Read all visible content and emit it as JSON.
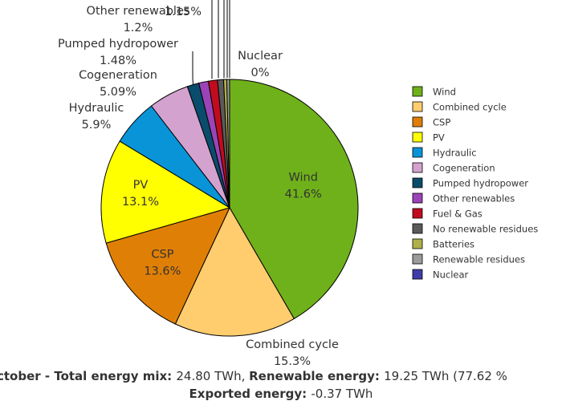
{
  "chart_data": {
    "type": "pie",
    "slices": [
      {
        "label": "Wind",
        "value": 41.6,
        "display": "41.6%",
        "color": "#6fb11a"
      },
      {
        "label": "Combined cycle",
        "value": 15.3,
        "display": "15.3%",
        "color": "#ffcc6e"
      },
      {
        "label": "CSP",
        "value": 13.6,
        "display": "13.6%",
        "color": "#e07f06"
      },
      {
        "label": "PV",
        "value": 13.1,
        "display": "13.1%",
        "color": "#ffff00"
      },
      {
        "label": "Hydraulic",
        "value": 5.9,
        "display": "5.9%",
        "color": "#0994d8"
      },
      {
        "label": "Cogeneration",
        "value": 5.09,
        "display": "5.09%",
        "color": "#d4a2cf"
      },
      {
        "label": "Pumped hydropower",
        "value": 1.48,
        "display": "1.48%",
        "color": "#0a4c6b"
      },
      {
        "label": "Other renewables",
        "value": 1.2,
        "display": "1.2%",
        "color": "#9a44b7"
      },
      {
        "label": "Fuel & Gas",
        "value": 1.15,
        "display": "1.15%",
        "color": "#c00c1e"
      },
      {
        "label": "No renewable residues",
        "value": 0.75,
        "display": "0.75%",
        "color": "#5a5a5a"
      },
      {
        "label": "Batteries",
        "value": 0.4,
        "display": "0.4%",
        "color": "#b0b04a"
      },
      {
        "label": "Renewable residues",
        "value": 0.35,
        "display": "0.35%",
        "color": "#9b9b9b"
      },
      {
        "label": "Nuclear",
        "value": 0.0,
        "display": "0%",
        "color": "#3e3ea8"
      }
    ],
    "legend_position": "right"
  },
  "footer": {
    "line1": [
      {
        "text": "ctober - Total energy mix: ",
        "bold": true
      },
      {
        "text": "24.80 TWh, ",
        "bold": false
      },
      {
        "text": "Renewable energy: ",
        "bold": true
      },
      {
        "text": "19.25 TWh (77.62 %",
        "bold": false
      }
    ],
    "line2": [
      {
        "text": "Exported energy: ",
        "bold": true
      },
      {
        "text": "-0.37 TWh",
        "bold": false
      }
    ]
  }
}
